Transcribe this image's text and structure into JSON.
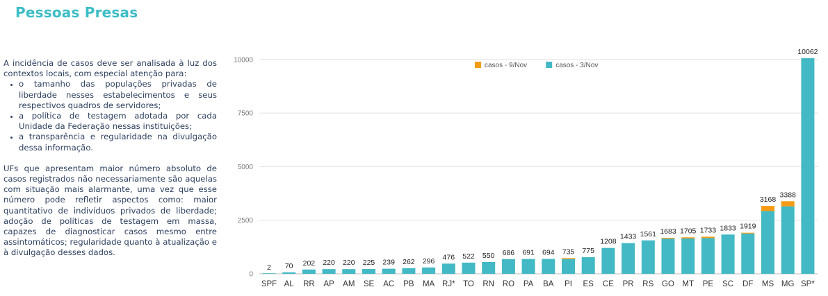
{
  "title": "Pessoas Presas",
  "intro": "A incidência de casos deve ser analisada à luz dos contextos locais, com especial atenção para:",
  "bullets": [
    "o tamanho das populações privadas de liberdade nesses estabelecimentos e seus respectivos quadros de servidores;",
    "a política de testagem adotada por cada Unidade da Federação nessas instituições;",
    "a transparência e regularidade na divulgação dessa informação."
  ],
  "paragraph2": "UFs que apresentam maior número absoluto de casos registrados não necessariamente são aquelas com situação mais alarmante, uma vez que esse número pode refletir aspectos como: maior quantitativo de indivíduos privados de liberdade; adoção de políticas de testagem em massa, capazes de diagnosticar casos mesmo entre assintomáticos; regularidade quanto à atualização e à divulgação desses dados.",
  "colors": {
    "title": "#3dbdc6",
    "series_nov3": "#42b9c5",
    "series_nov9": "#f59c16",
    "text": "#2c3f5e",
    "grid": "#e2e2e2"
  },
  "chart_data": {
    "type": "bar",
    "stacked": true,
    "categories": [
      "SPF",
      "AL",
      "RR",
      "AP",
      "AM",
      "SE",
      "AC",
      "PB",
      "MA",
      "RJ*",
      "TO",
      "RN",
      "RO",
      "PA",
      "BA",
      "PI",
      "ES",
      "CE",
      "PR",
      "RS",
      "GO",
      "MT",
      "PE",
      "SC",
      "DF",
      "MS",
      "MG",
      "SP*"
    ],
    "series": [
      {
        "name": "casos - 3/Nov",
        "color": "#42b9c5",
        "values": [
          2,
          70,
          202,
          220,
          220,
          225,
          239,
          262,
          296,
          476,
          522,
          550,
          686,
          691,
          694,
          690,
          775,
          1208,
          1433,
          1561,
          1640,
          1650,
          1670,
          1833,
          1880,
          2930,
          3150,
          10062
        ]
      },
      {
        "name": "casos - 9/Nov",
        "color": "#f59c16",
        "values": [
          0,
          0,
          0,
          0,
          0,
          0,
          0,
          0,
          0,
          0,
          0,
          0,
          0,
          0,
          0,
          45,
          0,
          0,
          0,
          0,
          43,
          55,
          63,
          0,
          39,
          238,
          238,
          0
        ]
      }
    ],
    "totals": [
      2,
      70,
      202,
      220,
      220,
      225,
      239,
      262,
      296,
      476,
      522,
      550,
      686,
      691,
      694,
      735,
      775,
      1208,
      1433,
      1561,
      1683,
      1705,
      1733,
      1833,
      1919,
      3168,
      3388,
      10062
    ],
    "yticks": [
      0,
      2500,
      5000,
      7500,
      10000
    ],
    "ylim": [
      0,
      10062
    ],
    "grid": true,
    "legend_position": "top-center"
  }
}
